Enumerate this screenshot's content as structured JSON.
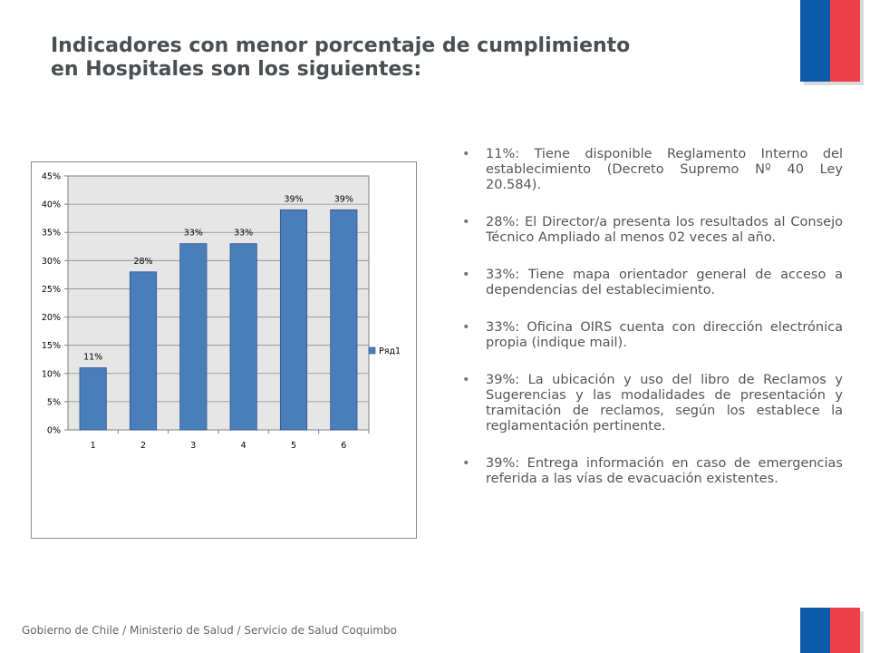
{
  "title_line1": "Indicadores con menor porcentaje de cumplimiento",
  "title_line2": "en Hospitales son los siguientes:",
  "chart_data": {
    "type": "bar",
    "categories": [
      "1",
      "2",
      "3",
      "4",
      "5",
      "6"
    ],
    "series": [
      {
        "name": "Ряд1",
        "values": [
          0.11,
          0.28,
          0.33,
          0.33,
          0.39,
          0.39
        ]
      }
    ],
    "data_labels": [
      "11%",
      "28%",
      "33%",
      "33%",
      "39%",
      "39%"
    ],
    "ylim": [
      0,
      0.45
    ],
    "y_ticks": [
      "0%",
      "5%",
      "10%",
      "15%",
      "20%",
      "25%",
      "30%",
      "35%",
      "40%",
      "45%"
    ],
    "grid": true,
    "legend_position": "right",
    "bar_color": "#4a7ebb",
    "plot_background": "#e6e6e6"
  },
  "bullets": [
    "11%: Tiene disponible Reglamento Interno del establecimiento (Decreto Supremo Nº 40 Ley 20.584).",
    "28%: El Director/a  presenta los resultados al Consejo Técnico Ampliado al menos 02 veces al año.",
    "33%: Tiene mapa orientador  general de acceso a dependencias del establecimiento.",
    "33%: Oficina OIRS cuenta con dirección electrónica propia (indique mail).",
    "39%: La ubicación y uso del libro de Reclamos y Sugerencias y las modalidades de presentación y tramitación de reclamos, según los establece la reglamentación pertinente.",
    "39%: Entrega información en caso de emergencias referida a las vías de evacuación existentes."
  ],
  "bullet_symbol": "•",
  "footer": "Gobierno de Chile / Ministerio de Salud / Servicio de Salud Coquimbo",
  "colors": {
    "flag_blue": "#0c5aa8",
    "flag_red": "#ee3e47"
  }
}
